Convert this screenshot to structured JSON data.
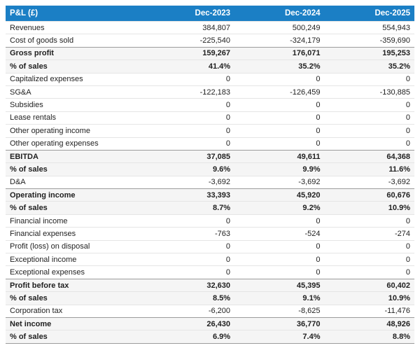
{
  "colors": {
    "header_bg": "#1b7fc5",
    "header_text": "#ffffff",
    "total_row_bg": "#f5f5f5",
    "light_border": "#e5e5e5",
    "dark_border": "#9c9c9c",
    "body_text": "#1f1f1f"
  },
  "chart_data": {
    "type": "table",
    "title": "P&L (£)",
    "columns": [
      "Dec-2023",
      "Dec-2024",
      "Dec-2025"
    ],
    "rows": [
      {
        "label": "Revenues",
        "values": [
          "384,807",
          "500,249",
          "554,943"
        ],
        "bold": false
      },
      {
        "label": "Cost of goods sold",
        "values": [
          "-225,540",
          "-324,179",
          "-359,690"
        ],
        "bold": false
      },
      {
        "label": "Gross profit",
        "values": [
          "159,267",
          "176,071",
          "195,253"
        ],
        "bold": true
      },
      {
        "label": "% of sales",
        "values": [
          "41.4%",
          "35.2%",
          "35.2%"
        ],
        "bold": true
      },
      {
        "label": "Capitalized expenses",
        "values": [
          "0",
          "0",
          "0"
        ],
        "bold": false
      },
      {
        "label": "SG&A",
        "values": [
          "-122,183",
          "-126,459",
          "-130,885"
        ],
        "bold": false
      },
      {
        "label": "Subsidies",
        "values": [
          "0",
          "0",
          "0"
        ],
        "bold": false
      },
      {
        "label": "Lease rentals",
        "values": [
          "0",
          "0",
          "0"
        ],
        "bold": false
      },
      {
        "label": "Other operating income",
        "values": [
          "0",
          "0",
          "0"
        ],
        "bold": false
      },
      {
        "label": "Other operating expenses",
        "values": [
          "0",
          "0",
          "0"
        ],
        "bold": false
      },
      {
        "label": "EBITDA",
        "values": [
          "37,085",
          "49,611",
          "64,368"
        ],
        "bold": true
      },
      {
        "label": "% of sales",
        "values": [
          "9.6%",
          "9.9%",
          "11.6%"
        ],
        "bold": true
      },
      {
        "label": "D&A",
        "values": [
          "-3,692",
          "-3,692",
          "-3,692"
        ],
        "bold": false
      },
      {
        "label": "Operating income",
        "values": [
          "33,393",
          "45,920",
          "60,676"
        ],
        "bold": true
      },
      {
        "label": "% of sales",
        "values": [
          "8.7%",
          "9.2%",
          "10.9%"
        ],
        "bold": true
      },
      {
        "label": "Financial income",
        "values": [
          "0",
          "0",
          "0"
        ],
        "bold": false
      },
      {
        "label": "Financial expenses",
        "values": [
          "-763",
          "-524",
          "-274"
        ],
        "bold": false
      },
      {
        "label": "Profit (loss) on disposal",
        "values": [
          "0",
          "0",
          "0"
        ],
        "bold": false
      },
      {
        "label": "Exceptional income",
        "values": [
          "0",
          "0",
          "0"
        ],
        "bold": false
      },
      {
        "label": "Exceptional expenses",
        "values": [
          "0",
          "0",
          "0"
        ],
        "bold": false
      },
      {
        "label": "Profit before tax",
        "values": [
          "32,630",
          "45,395",
          "60,402"
        ],
        "bold": true
      },
      {
        "label": "% of sales",
        "values": [
          "8.5%",
          "9.1%",
          "10.9%"
        ],
        "bold": true
      },
      {
        "label": "Corporation tax",
        "values": [
          "-6,200",
          "-8,625",
          "-11,476"
        ],
        "bold": false
      },
      {
        "label": "Net income",
        "values": [
          "26,430",
          "36,770",
          "48,926"
        ],
        "bold": true
      },
      {
        "label": "% of sales",
        "values": [
          "6.9%",
          "7.4%",
          "8.8%"
        ],
        "bold": true
      }
    ]
  }
}
